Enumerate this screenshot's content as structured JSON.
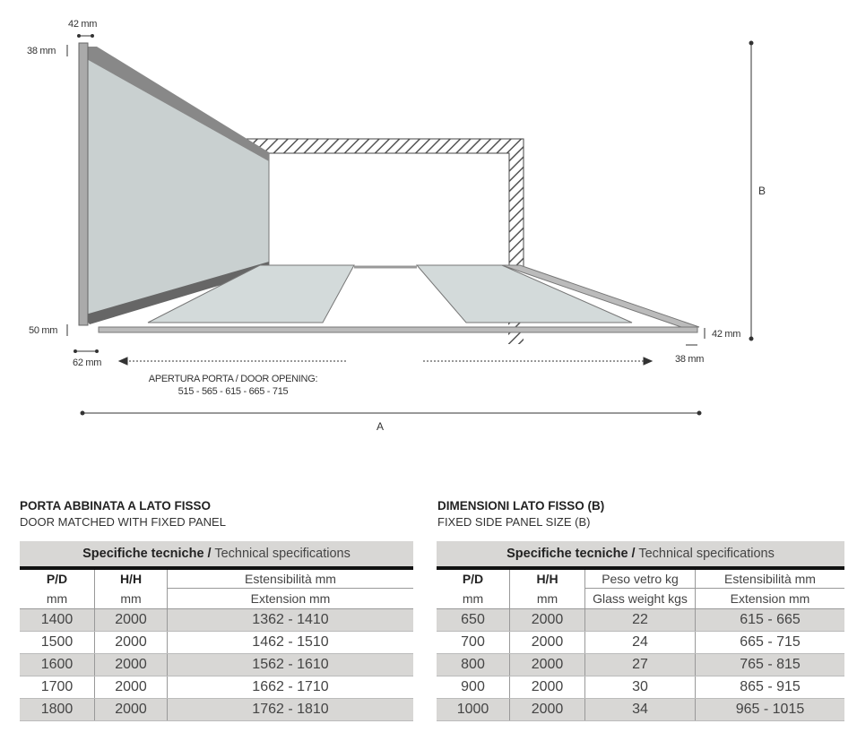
{
  "diagram": {
    "dims": {
      "top_width": "42 mm",
      "top_height": "38 mm",
      "bottom_left_height": "50 mm",
      "bottom_left_width": "62 mm",
      "right_height": "42 mm",
      "right_width": "38 mm",
      "b_label": "B",
      "a_label": "A"
    },
    "door_opening_label": "APERTURA PORTA / DOOR OPENING:",
    "door_opening_values": "515 - 565 - 615 - 665 - 715"
  },
  "left": {
    "title": "PORTA ABBINATA A LATO FISSO",
    "subtitle": "DOOR MATCHED WITH FIXED PANEL",
    "table": {
      "caption_bold": "Specifiche tecniche /",
      "caption": " Technical specifications",
      "headers": [
        [
          "P/D",
          "mm"
        ],
        [
          "H/H",
          "mm"
        ],
        [
          "Estensibilità mm",
          "Extension mm"
        ]
      ],
      "rows": [
        [
          "1400",
          "2000",
          "1362 - 1410"
        ],
        [
          "1500",
          "2000",
          "1462 - 1510"
        ],
        [
          "1600",
          "2000",
          "1562 - 1610"
        ],
        [
          "1700",
          "2000",
          "1662 - 1710"
        ],
        [
          "1800",
          "2000",
          "1762 - 1810"
        ]
      ]
    }
  },
  "right": {
    "title": "DIMENSIONI LATO FISSO (B)",
    "subtitle": "FIXED SIDE PANEL SIZE (B)",
    "table": {
      "caption_bold": "Specifiche tecniche /",
      "caption": " Technical specifications",
      "headers": [
        [
          "P/D",
          "mm"
        ],
        [
          "H/H",
          "mm"
        ],
        [
          "Peso vetro kg",
          "Glass weight kgs"
        ],
        [
          "Estensibilità mm",
          "Extension mm"
        ]
      ],
      "rows": [
        [
          "650",
          "2000",
          "22",
          "615 - 665"
        ],
        [
          "700",
          "2000",
          "24",
          "665 - 715"
        ],
        [
          "800",
          "2000",
          "27",
          "765 - 815"
        ],
        [
          "900",
          "2000",
          "30",
          "865 - 915"
        ],
        [
          "1000",
          "2000",
          "34",
          "965 - 1015"
        ]
      ]
    }
  }
}
